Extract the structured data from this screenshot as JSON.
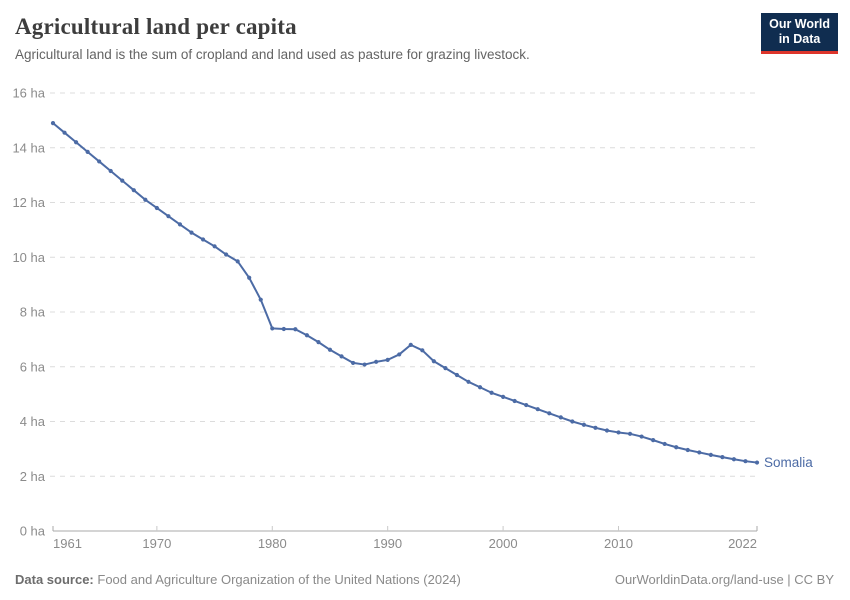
{
  "header": {
    "title": "Agricultural land per capita",
    "subtitle": "Agricultural land is the sum of cropland and land used as pasture for grazing livestock.",
    "logo": {
      "line1": "Our World",
      "line2": "in Data",
      "bg_color": "#102d50",
      "accent_color": "#dd352b"
    }
  },
  "chart_data": {
    "type": "line",
    "title": "Agricultural land per capita",
    "xlabel": "",
    "ylabel": "",
    "unit": "ha",
    "xlim": [
      1961,
      2022
    ],
    "ylim": [
      0,
      16
    ],
    "grid": "horizontal-dashed",
    "legend_position": "end-of-line-label",
    "yticks": [
      {
        "value": 0,
        "label": "0 ha"
      },
      {
        "value": 2,
        "label": "2 ha"
      },
      {
        "value": 4,
        "label": "4 ha"
      },
      {
        "value": 6,
        "label": "6 ha"
      },
      {
        "value": 8,
        "label": "8 ha"
      },
      {
        "value": 10,
        "label": "10 ha"
      },
      {
        "value": 12,
        "label": "12 ha"
      },
      {
        "value": 14,
        "label": "14 ha"
      },
      {
        "value": 16,
        "label": "16 ha"
      }
    ],
    "xticks": [
      {
        "value": 1961,
        "label": "1961"
      },
      {
        "value": 1970,
        "label": "1970"
      },
      {
        "value": 1980,
        "label": "1980"
      },
      {
        "value": 1990,
        "label": "1990"
      },
      {
        "value": 2000,
        "label": "2000"
      },
      {
        "value": 2010,
        "label": "2010"
      },
      {
        "value": 2022,
        "label": "2022"
      }
    ],
    "series": [
      {
        "name": "Somalia",
        "color": "#4C6BA5",
        "x": [
          1961,
          1962,
          1963,
          1964,
          1965,
          1966,
          1967,
          1968,
          1969,
          1970,
          1971,
          1972,
          1973,
          1974,
          1975,
          1976,
          1977,
          1978,
          1979,
          1980,
          1981,
          1982,
          1983,
          1984,
          1985,
          1986,
          1987,
          1988,
          1989,
          1990,
          1991,
          1992,
          1993,
          1994,
          1995,
          1996,
          1997,
          1998,
          1999,
          2000,
          2001,
          2002,
          2003,
          2004,
          2005,
          2006,
          2007,
          2008,
          2009,
          2010,
          2011,
          2012,
          2013,
          2014,
          2015,
          2016,
          2017,
          2018,
          2019,
          2020,
          2021,
          2022
        ],
        "values": [
          14.9,
          14.55,
          14.2,
          13.85,
          13.5,
          13.15,
          12.8,
          12.45,
          12.1,
          11.8,
          11.5,
          11.2,
          10.9,
          10.65,
          10.4,
          10.1,
          9.85,
          9.25,
          8.45,
          7.4,
          7.38,
          7.37,
          7.15,
          6.9,
          6.62,
          6.38,
          6.14,
          6.08,
          6.18,
          6.25,
          6.45,
          6.8,
          6.6,
          6.2,
          5.95,
          5.7,
          5.45,
          5.25,
          5.05,
          4.9,
          4.75,
          4.6,
          4.45,
          4.3,
          4.15,
          4.0,
          3.88,
          3.77,
          3.67,
          3.6,
          3.55,
          3.45,
          3.32,
          3.18,
          3.06,
          2.96,
          2.87,
          2.78,
          2.7,
          2.62,
          2.55,
          2.5
        ]
      }
    ]
  },
  "footer": {
    "source_label": "Data source:",
    "source_text": "Food and Agriculture Organization of the United Nations (2024)",
    "right_text": "OurWorldinData.org/land-use | CC BY"
  },
  "colors": {
    "line": "#4C6BA5",
    "grid": "#dcdcdc",
    "axis": "#a8a8a8",
    "tick_label": "#8b8b8b",
    "title_text": "#3d3d3d",
    "subtitle_text": "#646464"
  }
}
